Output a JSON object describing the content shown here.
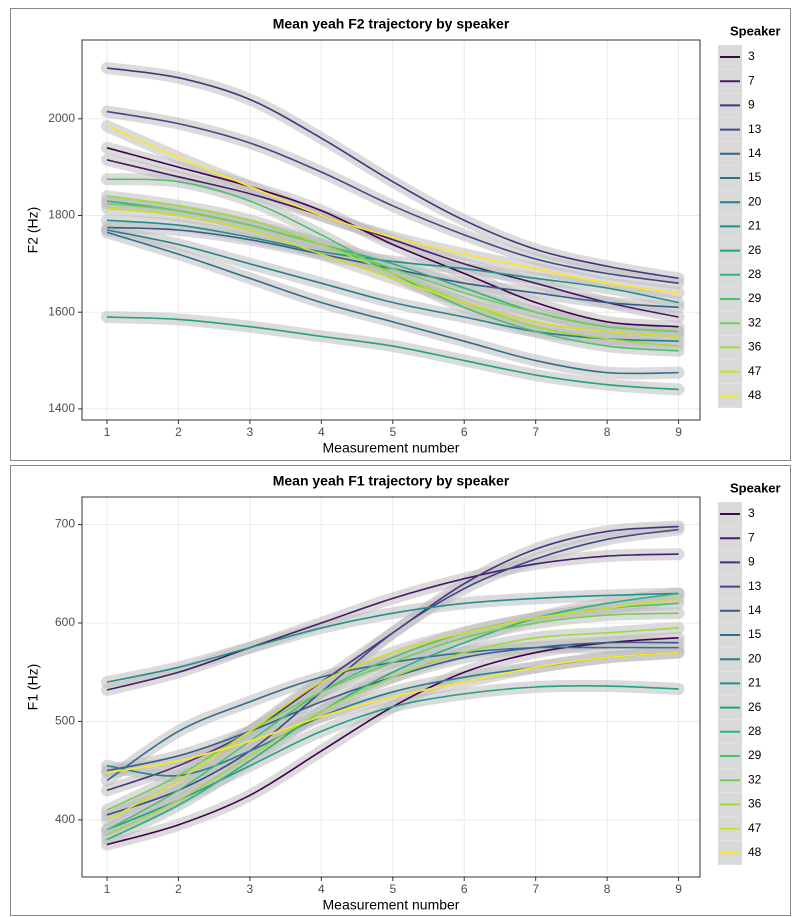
{
  "chart_data": [
    {
      "type": "line",
      "title": "Mean yeah F2 trajectory by speaker",
      "x_label": "Measurement number",
      "y_label": "F2 (Hz)",
      "x": [
        1,
        2,
        3,
        4,
        5,
        6,
        7,
        8,
        9
      ],
      "xlim": [
        0.65,
        9.3
      ],
      "ylim": [
        1377,
        2163
      ],
      "xticks": [
        1,
        2,
        3,
        4,
        5,
        6,
        7,
        8,
        9
      ],
      "yticks": [
        1400,
        1600,
        1800,
        2000
      ],
      "grid": true,
      "legend_title": "Speaker",
      "legend": "right",
      "series": [
        {
          "name": "3",
          "color": "#440154",
          "values": [
            1940,
            1900,
            1860,
            1810,
            1740,
            1680,
            1620,
            1580,
            1570
          ]
        },
        {
          "name": "7",
          "color": "#481B6D",
          "values": [
            1915,
            1880,
            1845,
            1800,
            1750,
            1700,
            1660,
            1620,
            1590
          ]
        },
        {
          "name": "9",
          "color": "#46337E",
          "values": [
            2105,
            2085,
            2040,
            1960,
            1870,
            1790,
            1730,
            1695,
            1670
          ]
        },
        {
          "name": "13",
          "color": "#3F4889",
          "values": [
            2015,
            1990,
            1950,
            1890,
            1820,
            1760,
            1710,
            1680,
            1660
          ]
        },
        {
          "name": "14",
          "color": "#365C8D",
          "values": [
            1775,
            1770,
            1750,
            1720,
            1690,
            1660,
            1640,
            1620,
            1610
          ]
        },
        {
          "name": "15",
          "color": "#2E6E8E",
          "values": [
            1765,
            1720,
            1670,
            1620,
            1580,
            1540,
            1500,
            1475,
            1475
          ]
        },
        {
          "name": "20",
          "color": "#277F8E",
          "values": [
            1770,
            1740,
            1700,
            1660,
            1620,
            1590,
            1560,
            1545,
            1540
          ]
        },
        {
          "name": "21",
          "color": "#21908C",
          "values": [
            1790,
            1780,
            1755,
            1725,
            1705,
            1690,
            1670,
            1650,
            1620
          ]
        },
        {
          "name": "26",
          "color": "#1FA187",
          "values": [
            1590,
            1585,
            1570,
            1550,
            1530,
            1500,
            1470,
            1450,
            1440
          ]
        },
        {
          "name": "28",
          "color": "#2DB27D",
          "values": [
            1830,
            1810,
            1780,
            1740,
            1700,
            1650,
            1600,
            1570,
            1560
          ]
        },
        {
          "name": "29",
          "color": "#4AC16D",
          "values": [
            1875,
            1870,
            1830,
            1760,
            1680,
            1610,
            1560,
            1530,
            1520
          ]
        },
        {
          "name": "32",
          "color": "#71CF57",
          "values": [
            1825,
            1810,
            1780,
            1740,
            1690,
            1640,
            1600,
            1570,
            1560
          ]
        },
        {
          "name": "36",
          "color": "#9FDA3A",
          "values": [
            1840,
            1820,
            1790,
            1740,
            1680,
            1620,
            1570,
            1545,
            1530
          ]
        },
        {
          "name": "47",
          "color": "#CFE11C",
          "values": [
            1815,
            1800,
            1770,
            1720,
            1670,
            1620,
            1580,
            1560,
            1550
          ]
        },
        {
          "name": "48",
          "color": "#FDE725",
          "values": [
            1985,
            1920,
            1860,
            1800,
            1755,
            1720,
            1690,
            1660,
            1640
          ]
        }
      ]
    },
    {
      "type": "line",
      "title": "Mean yeah F1 trajectory by speaker",
      "x_label": "Measurement number",
      "y_label": "F1 (Hz)",
      "x": [
        1,
        2,
        3,
        4,
        5,
        6,
        7,
        8,
        9
      ],
      "xlim": [
        0.65,
        9.3
      ],
      "ylim": [
        342,
        728
      ],
      "xticks": [
        1,
        2,
        3,
        4,
        5,
        6,
        7,
        8,
        9
      ],
      "yticks": [
        400,
        500,
        600,
        700
      ],
      "grid": true,
      "legend_title": "Speaker",
      "legend": "right",
      "series": [
        {
          "name": "3",
          "color": "#440154",
          "values": [
            375,
            395,
            425,
            470,
            515,
            550,
            570,
            580,
            585
          ]
        },
        {
          "name": "7",
          "color": "#481B6D",
          "values": [
            532,
            550,
            575,
            600,
            625,
            645,
            660,
            668,
            670
          ]
        },
        {
          "name": "9",
          "color": "#46337E",
          "values": [
            430,
            455,
            490,
            540,
            590,
            640,
            675,
            693,
            698
          ]
        },
        {
          "name": "13",
          "color": "#3F4889",
          "values": [
            405,
            430,
            470,
            530,
            590,
            635,
            665,
            685,
            695
          ]
        },
        {
          "name": "14",
          "color": "#365C8D",
          "values": [
            450,
            465,
            490,
            520,
            545,
            565,
            575,
            580,
            580
          ]
        },
        {
          "name": "15",
          "color": "#2E6E8E",
          "values": [
            440,
            490,
            520,
            545,
            560,
            570,
            575,
            575,
            575
          ]
        },
        {
          "name": "20",
          "color": "#277F8E",
          "values": [
            455,
            445,
            470,
            505,
            530,
            545,
            555,
            565,
            570
          ]
        },
        {
          "name": "21",
          "color": "#21908C",
          "values": [
            540,
            555,
            575,
            595,
            610,
            620,
            625,
            628,
            630
          ]
        },
        {
          "name": "26",
          "color": "#1FA187",
          "values": [
            390,
            420,
            455,
            490,
            515,
            528,
            535,
            536,
            533
          ]
        },
        {
          "name": "28",
          "color": "#2DB27D",
          "values": [
            380,
            415,
            460,
            510,
            550,
            580,
            605,
            620,
            630
          ]
        },
        {
          "name": "29",
          "color": "#4AC16D",
          "values": [
            390,
            430,
            480,
            530,
            565,
            590,
            605,
            615,
            620
          ]
        },
        {
          "name": "32",
          "color": "#71CF57",
          "values": [
            410,
            445,
            490,
            530,
            560,
            585,
            600,
            608,
            610
          ]
        },
        {
          "name": "36",
          "color": "#9FDA3A",
          "values": [
            385,
            420,
            465,
            510,
            545,
            570,
            585,
            590,
            595
          ]
        },
        {
          "name": "47",
          "color": "#CFE11C",
          "values": [
            400,
            440,
            490,
            540,
            570,
            590,
            605,
            615,
            625
          ]
        },
        {
          "name": "48",
          "color": "#FDE725",
          "values": [
            448,
            460,
            480,
            505,
            525,
            540,
            555,
            565,
            570
          ]
        }
      ]
    }
  ]
}
